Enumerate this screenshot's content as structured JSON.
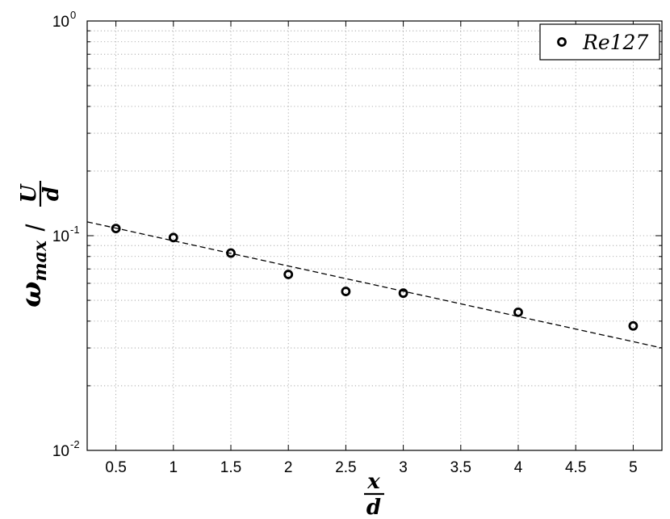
{
  "chart_data": {
    "type": "scatter",
    "yscale": "log",
    "xlim": [
      0.25,
      5.25
    ],
    "ylim": [
      0.01,
      1
    ],
    "grid": true,
    "legend_position": "top-right",
    "xticks": [
      "0.5",
      "1",
      "1.5",
      "2",
      "2.5",
      "3",
      "3.5",
      "4",
      "4.5",
      "5"
    ],
    "yticks": [
      {
        "base": "10",
        "exp": "-2"
      },
      {
        "base": "10",
        "exp": "-1"
      },
      {
        "base": "10",
        "exp": "0"
      }
    ],
    "xlabel": {
      "numerator": "x",
      "denominator": "d"
    },
    "ylabel": {
      "symbol": "ω",
      "subscript": "max",
      "slash": "/",
      "numerator": "U",
      "denominator": "d"
    },
    "series": [
      {
        "name": "Re127",
        "marker": "circle-open",
        "x": [
          0.5,
          1,
          1.5,
          2,
          2.5,
          3,
          4,
          5
        ],
        "y": [
          0.108,
          0.098,
          0.083,
          0.066,
          0.055,
          0.054,
          0.044,
          0.038
        ]
      }
    ],
    "fit_line": {
      "style": "dashed",
      "x": [
        0.25,
        5.25
      ],
      "y": [
        0.116,
        0.03
      ]
    }
  }
}
